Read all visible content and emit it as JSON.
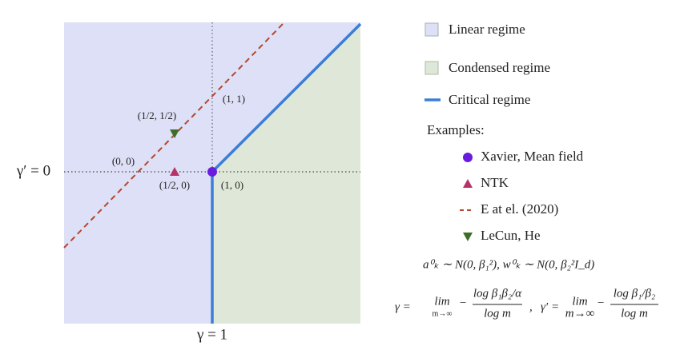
{
  "diagram": {
    "axis_labels": {
      "gamma_prime": "γ′ = 0",
      "gamma": "γ = 1"
    },
    "points": [
      "(1/2, 1/2)",
      "(1, 1)",
      "(0, 0)",
      "(1/2, 0)",
      "(1, 0)"
    ],
    "legend": [
      "Linear regime",
      "Condensed regime",
      "Critical regime"
    ],
    "examples_title": "Examples:",
    "examples": [
      "Xavier, Mean field",
      "NTK",
      "E at el. (2020)",
      "LeCun, He"
    ],
    "formula_init": "a⁰ₖ ∼ N(0, β₁²),   w⁰ₖ ∼ N(0, β₂²I_d)",
    "formula_gamma": [
      "γ =",
      "lim",
      "m→∞",
      "−",
      "log β₁β₂/α",
      "log m",
      ",",
      "γ′ =",
      "lim",
      "m→∞",
      "−",
      "log β₁/β₂",
      "log m"
    ]
  }
}
